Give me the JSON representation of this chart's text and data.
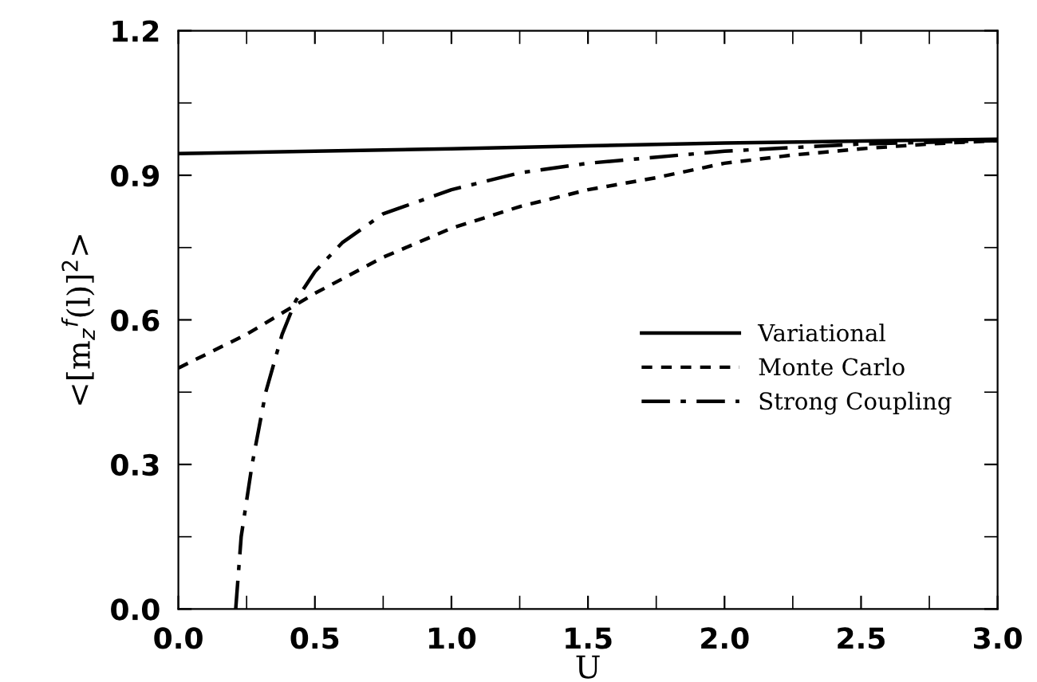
{
  "chart_data": {
    "type": "line",
    "xlabel": "U",
    "ylabel": "<[m$_{z}$$^{f}$(l)]$^{2}$>",
    "xlim": [
      0,
      3
    ],
    "ylim": [
      0,
      1.2
    ],
    "xticks": [
      {
        "value": 0,
        "label": "0.0"
      },
      0.5,
      {
        "value": 1,
        "label": "1.0"
      },
      1.5,
      {
        "value": 2,
        "label": "2.0"
      },
      2.5,
      {
        "value": 3,
        "label": "3.0"
      }
    ],
    "yticks": [
      {
        "value": 0,
        "label": "0.0"
      },
      0.3,
      0.6,
      0.9,
      1.2
    ],
    "grid": false,
    "legend": "bottom right",
    "marker": "none",
    "series": [
      {
        "name": "Variational",
        "color": "#000000",
        "line_style": "solid",
        "x": [
          0,
          0.5,
          1.0,
          1.5,
          2.0,
          2.5,
          3.0
        ],
        "values": [
          0.945,
          0.95,
          0.955,
          0.961,
          0.967,
          0.971,
          0.975
        ]
      },
      {
        "name": "Monte Carlo",
        "color": "#000000",
        "line_style": "dotted",
        "x": [
          0,
          0.25,
          0.5,
          0.75,
          1.0,
          1.25,
          1.5,
          1.75,
          2.0,
          2.25,
          2.5,
          2.75,
          3.0
        ],
        "values": [
          0.5,
          0.57,
          0.655,
          0.73,
          0.79,
          0.835,
          0.87,
          0.895,
          0.925,
          0.942,
          0.955,
          0.965,
          0.972
        ]
      },
      {
        "name": "Strong Coupling",
        "color": "#000000",
        "line_style": "dashdot",
        "x": [
          0.21,
          0.23,
          0.27,
          0.32,
          0.38,
          0.43,
          0.5,
          0.6,
          0.75,
          1.0,
          1.25,
          1.5,
          2.0,
          2.5,
          3.0
        ],
        "values": [
          0.0,
          0.15,
          0.3,
          0.45,
          0.57,
          0.64,
          0.7,
          0.76,
          0.82,
          0.87,
          0.905,
          0.925,
          0.95,
          0.965,
          0.972
        ]
      }
    ]
  }
}
